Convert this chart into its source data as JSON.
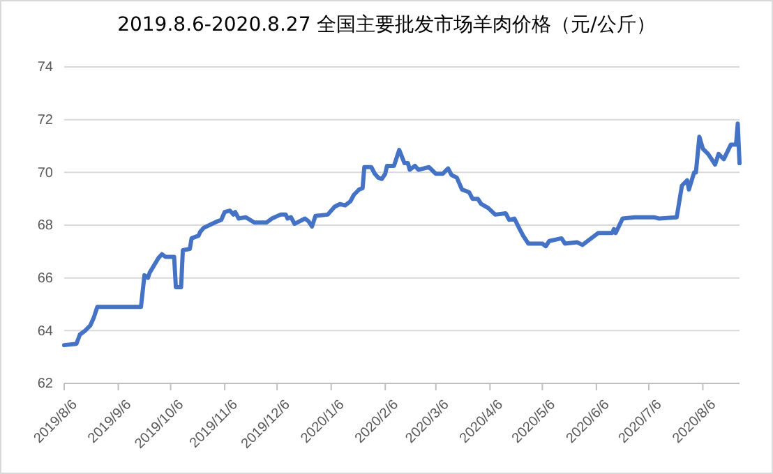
{
  "chart_data": {
    "type": "line",
    "title": "2019.8.6-2020.8.27 全国主要批发市场羊肉价格（元/公斤）",
    "x": [
      "2019-08-06",
      "2019-08-13",
      "2019-08-15",
      "2019-08-18",
      "2019-08-21",
      "2019-08-23",
      "2019-08-25",
      "2019-09-19",
      "2019-09-21",
      "2019-09-23",
      "2019-09-24",
      "2019-09-29",
      "2019-10-01",
      "2019-10-03",
      "2019-10-08",
      "2019-10-09",
      "2019-10-12",
      "2019-10-13",
      "2019-10-17",
      "2019-10-18",
      "2019-10-22",
      "2019-10-23",
      "2019-10-25",
      "2019-11-02",
      "2019-11-04",
      "2019-11-06",
      "2019-11-09",
      "2019-11-11",
      "2019-11-12",
      "2019-11-14",
      "2019-11-18",
      "2019-11-23",
      "2019-11-30",
      "2019-12-03",
      "2019-12-08",
      "2019-12-11",
      "2019-12-12",
      "2019-12-14",
      "2019-12-16",
      "2019-12-22",
      "2019-12-24",
      "2019-12-26",
      "2019-12-28",
      "2020-01-04",
      "2020-01-08",
      "2020-01-11",
      "2020-01-14",
      "2020-01-17",
      "2020-01-19",
      "2020-01-22",
      "2020-01-24",
      "2020-01-25",
      "2020-01-29",
      "2020-01-31",
      "2020-02-02",
      "2020-02-04",
      "2020-02-06",
      "2020-02-07",
      "2020-02-11",
      "2020-02-14",
      "2020-02-17",
      "2020-02-19",
      "2020-02-20",
      "2020-02-23",
      "2020-02-25",
      "2020-03-02",
      "2020-03-06",
      "2020-03-10",
      "2020-03-13",
      "2020-03-15",
      "2020-03-18",
      "2020-03-21",
      "2020-03-25",
      "2020-03-27",
      "2020-03-30",
      "2020-04-01",
      "2020-04-05",
      "2020-04-09",
      "2020-04-15",
      "2020-04-17",
      "2020-04-20",
      "2020-04-23",
      "2020-04-25",
      "2020-04-28",
      "2020-05-02",
      "2020-05-06",
      "2020-05-08",
      "2020-05-10",
      "2020-05-17",
      "2020-05-19",
      "2020-05-26",
      "2020-05-29",
      "2020-06-03",
      "2020-06-07",
      "2020-06-15",
      "2020-06-16",
      "2020-06-17",
      "2020-06-21",
      "2020-06-28",
      "2020-07-09",
      "2020-07-12",
      "2020-07-22",
      "2020-07-25",
      "2020-07-28",
      "2020-07-29",
      "2020-08-01",
      "2020-08-02",
      "2020-08-04",
      "2020-08-06",
      "2020-08-09",
      "2020-08-13",
      "2020-08-15",
      "2020-08-18",
      "2020-08-22",
      "2020-08-25",
      "2020-08-26",
      "2020-08-27"
    ],
    "series": [
      {
        "color": "#4472c4",
        "values": [
          63.45,
          63.5,
          63.85,
          64.0,
          64.2,
          64.5,
          64.9,
          64.9,
          66.1,
          66.0,
          66.2,
          66.75,
          66.9,
          66.8,
          66.8,
          65.65,
          65.65,
          67.05,
          67.1,
          67.5,
          67.6,
          67.75,
          67.9,
          68.15,
          68.2,
          68.5,
          68.55,
          68.4,
          68.5,
          68.25,
          68.3,
          68.1,
          68.1,
          68.25,
          68.4,
          68.4,
          68.25,
          68.3,
          68.05,
          68.25,
          68.15,
          67.95,
          68.35,
          68.4,
          68.7,
          68.8,
          68.75,
          68.9,
          69.15,
          69.35,
          69.4,
          70.2,
          70.2,
          69.95,
          69.8,
          69.75,
          69.95,
          70.25,
          70.25,
          70.85,
          70.35,
          70.35,
          70.1,
          70.25,
          70.1,
          70.2,
          69.95,
          69.95,
          70.15,
          69.9,
          69.8,
          69.35,
          69.25,
          69.0,
          69.0,
          68.8,
          68.65,
          68.4,
          68.45,
          68.2,
          68.25,
          67.85,
          67.6,
          67.3,
          67.3,
          67.3,
          67.2,
          67.4,
          67.5,
          67.3,
          67.35,
          67.25,
          67.5,
          67.7,
          67.7,
          67.85,
          67.7,
          68.25,
          68.3,
          68.3,
          68.25,
          68.3,
          69.5,
          69.7,
          69.35,
          70.0,
          70.0,
          71.35,
          70.9,
          70.7,
          70.3,
          70.7,
          70.5,
          71.05,
          71.05,
          71.85,
          70.35
        ]
      }
    ],
    "xlim": [
      "2019-08-06",
      "2020-08-27"
    ],
    "xticks": [
      {
        "value": "2019-08-06",
        "label": "2019/8/6"
      },
      {
        "value": "2019-09-06",
        "label": "2019/9/6"
      },
      {
        "value": "2019-10-06",
        "label": "2019/10/6"
      },
      {
        "value": "2019-11-06",
        "label": "2019/11/6"
      },
      {
        "value": "2019-12-06",
        "label": "2019/12/6"
      },
      {
        "value": "2020-01-06",
        "label": "2020/1/6"
      },
      {
        "value": "2020-02-06",
        "label": "2020/2/6"
      },
      {
        "value": "2020-03-06",
        "label": "2020/3/6"
      },
      {
        "value": "2020-04-06",
        "label": "2020/4/6"
      },
      {
        "value": "2020-05-06",
        "label": "2020/5/6"
      },
      {
        "value": "2020-06-06",
        "label": "2020/6/6"
      },
      {
        "value": "2020-07-06",
        "label": "2020/7/6"
      },
      {
        "value": "2020-08-06",
        "label": "2020/8/6"
      }
    ],
    "ylim": [
      62,
      74
    ],
    "yticks": [
      62,
      64,
      66,
      68,
      70,
      72,
      74
    ],
    "grid": "y",
    "marker": "none",
    "line_style": "solid"
  }
}
